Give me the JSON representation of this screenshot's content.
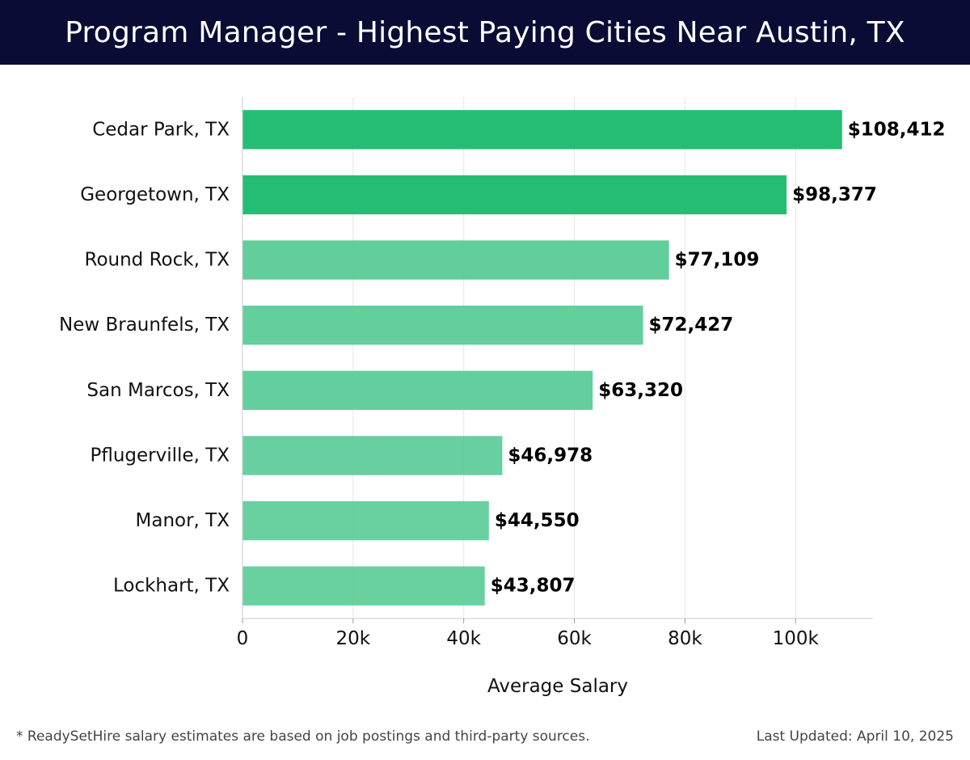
{
  "header": {
    "title": "Program Manager - Highest Paying Cities Near Austin, TX"
  },
  "chart_data": {
    "type": "bar",
    "orientation": "horizontal",
    "title": "Program Manager - Highest Paying Cities Near Austin, TX",
    "categories": [
      "Cedar Park, TX",
      "Georgetown, TX",
      "Round Rock, TX",
      "New Braunfels, TX",
      "San Marcos, TX",
      "Pflugerville, TX",
      "Manor, TX",
      "Lockhart, TX"
    ],
    "values": [
      108412,
      98377,
      77109,
      72427,
      63320,
      46978,
      44550,
      43807
    ],
    "value_labels": [
      "$108,412",
      "$98,377",
      "$77,109",
      "$72,427",
      "$63,320",
      "$46,978",
      "$44,550",
      "$43,807"
    ],
    "xlabel": "Average Salary",
    "ylabel": "",
    "xlim": [
      0,
      114000
    ],
    "xticks": [
      0,
      20000,
      40000,
      60000,
      80000,
      100000
    ],
    "xtick_labels": [
      "0",
      "20k",
      "40k",
      "60k",
      "80k",
      "100k"
    ],
    "grid": true,
    "bar_color_strong": "#25bd73",
    "bar_color_light": "#5acc97"
  },
  "footer": {
    "note": "* ReadySetHire salary estimates are based on job postings and third-party sources.",
    "updated": "Last Updated: April 10, 2025"
  }
}
